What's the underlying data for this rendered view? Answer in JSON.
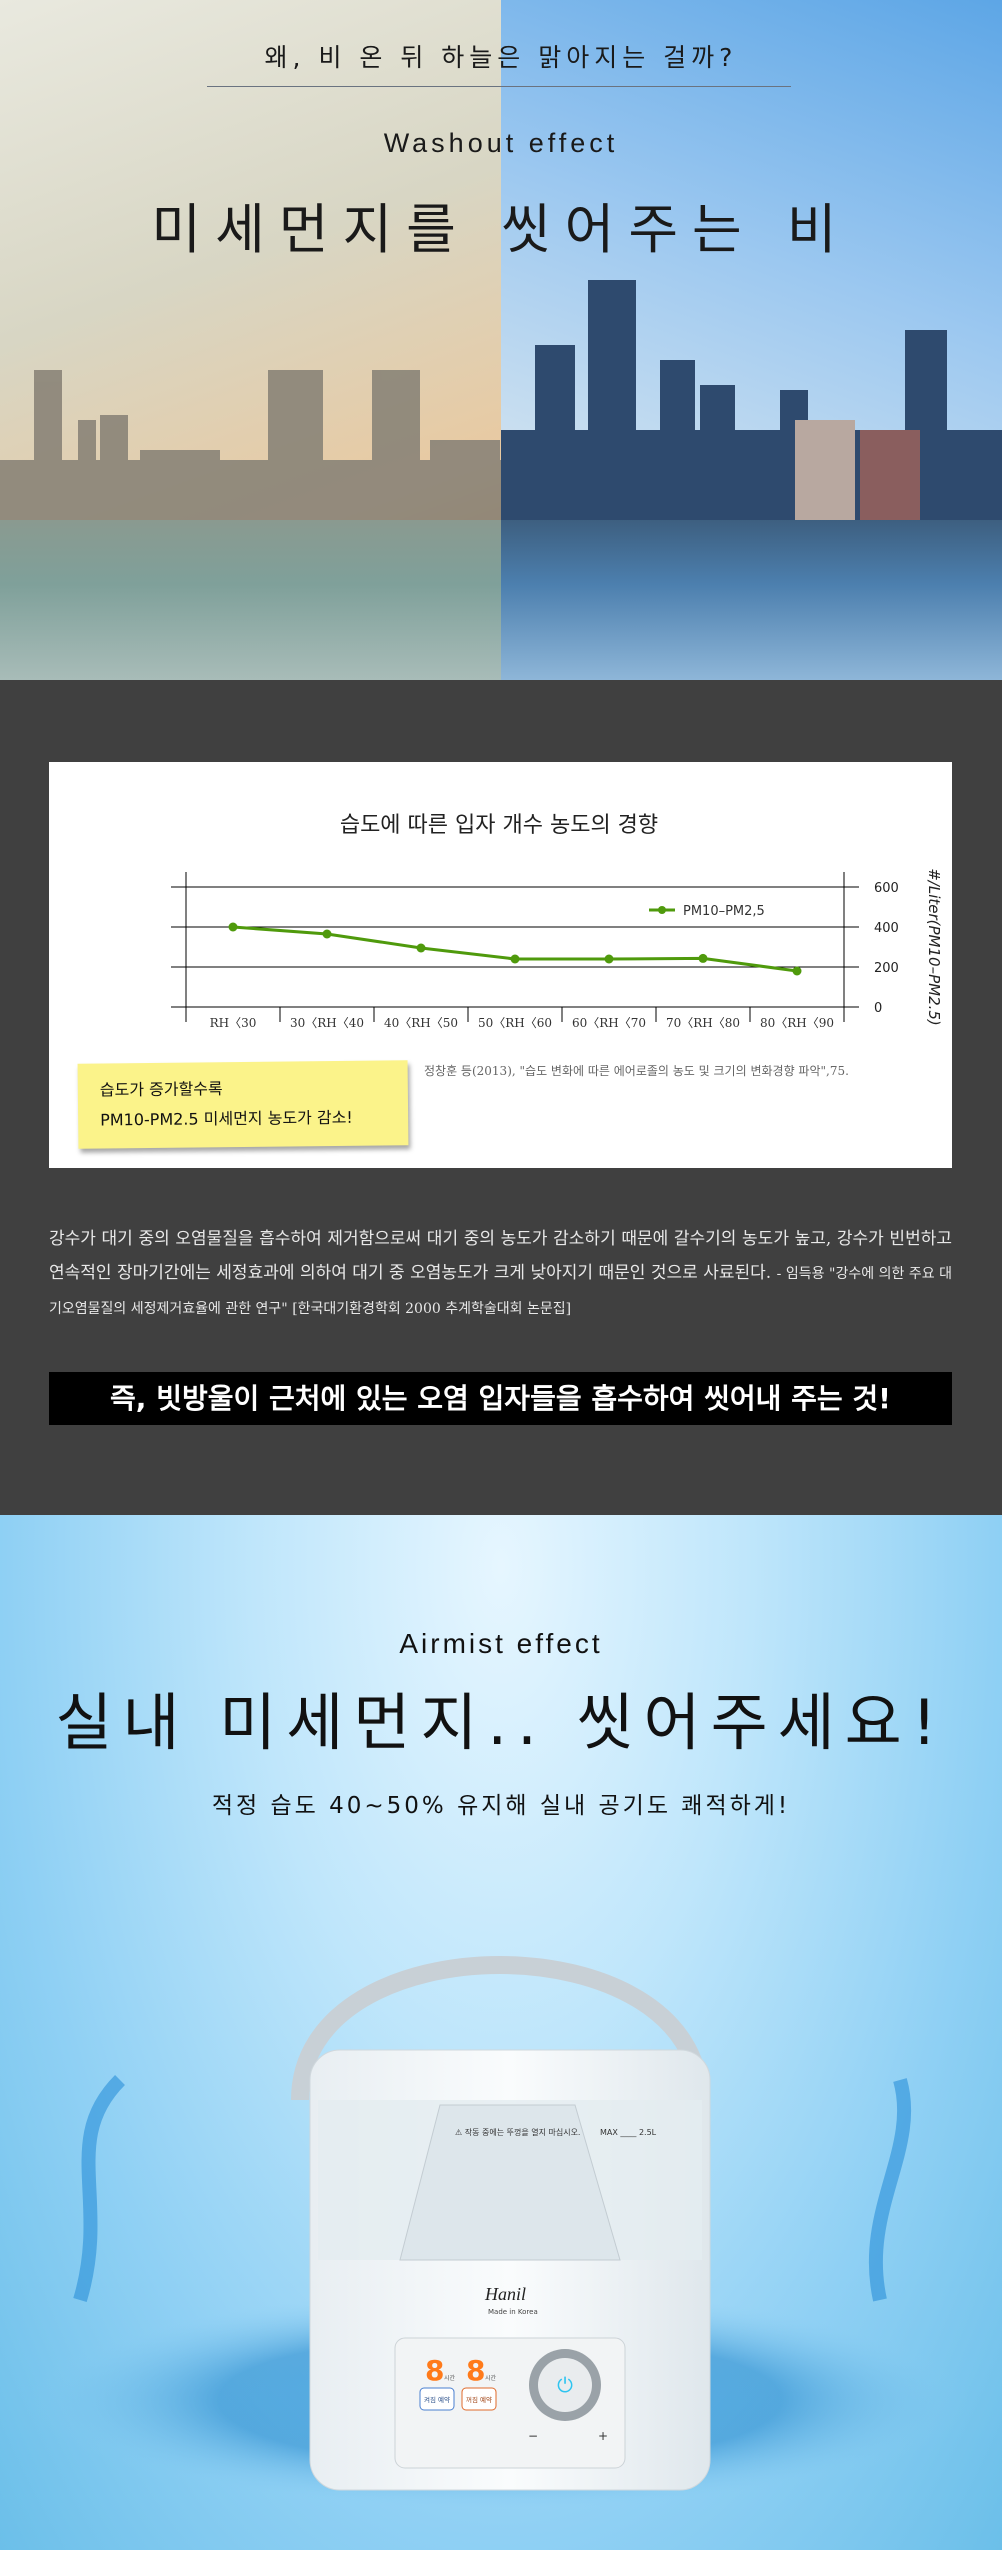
{
  "hero": {
    "question": "왜, 비 온 뒤 하늘은 맑아지는 걸까?",
    "subtitle": "Washout effect",
    "title": "미세먼지를 씻어주는 비"
  },
  "chart_data": {
    "type": "line",
    "title": "습도에 따른 입자 개수 농도의 경향",
    "categories": [
      "RH<30",
      "30<RH<40",
      "40<RH<50",
      "50<RH<60",
      "60<RH<70",
      "70<RH<80",
      "80<RH<90"
    ],
    "category_labels": [
      "RH〈30",
      "30〈RH〈40",
      "40〈RH〈50",
      "50〈RH〈60",
      "60〈RH〈70",
      "70〈RH〈80",
      "80〈RH〈90"
    ],
    "series": [
      {
        "name": "PM10–PM2.5",
        "values": [
          400,
          365,
          295,
          240,
          240,
          243,
          180
        ],
        "color": "#4f9a0c"
      }
    ],
    "ylabel": "#/Liter(PM10–PM2.5)",
    "ylim": [
      0,
      600
    ],
    "yticks": [
      "0",
      "200",
      "400",
      "600"
    ],
    "y_axis_side": "right",
    "grid": true,
    "legend": "top-right",
    "legend_label": "PM10–PM2,5"
  },
  "chart_note": {
    "line1": "습도가 증가할수록",
    "line2": "PM10-PM2.5 미세먼지 농도가 감소!"
  },
  "citation": "정창훈 등(2013), \"습도 변화에 따른 에어로졸의 농도 및 크기의 변화경향 파악\",75.",
  "paragraph": {
    "body": "강수가 대기 중의 오염물질을 흡수하여 제거함으로써 대기 중의 농도가 감소하기 때문에 갈수기의 농도가 높고, 강수가 빈번하고 연속적인 장마기간에는 세정효과에 의하여 대기 중 오염농도가 크게 낮아지기 때문인 것으로 사료된다. ",
    "source": "- 임득용 \"강수에 의한 주요 대기오염물질의 세정제거효율에 관한 연구\" [한국대기환경학회 2000 추계학술대회 논문집]"
  },
  "highlight": "즉, 빗방울이 근처에 있는 오염 입자들을 흡수하여 씻어내 주는 것!",
  "airmist": {
    "subtitle": "Airmist effect",
    "title": "실내 미세먼지.. 씻어주세요!",
    "tagline": "적정 습도 40~50% 유지해 실내 공기도 쾌적하게!"
  },
  "product": {
    "warning": "작동 중에는 뚜껑을 열지 마십시오.",
    "max_label": "MAX",
    "capacity": "2.5L",
    "brand": "Hanil",
    "made_in": "Made in Korea",
    "display_digit_1": "8",
    "display_digit_2": "8",
    "hour_unit": "시간",
    "on_timer": "켜짐 예약",
    "off_timer": "꺼짐 예약",
    "minus": "−",
    "plus": "+",
    "accent": "#ff7a1a",
    "power_color": "#2ec4f0"
  }
}
